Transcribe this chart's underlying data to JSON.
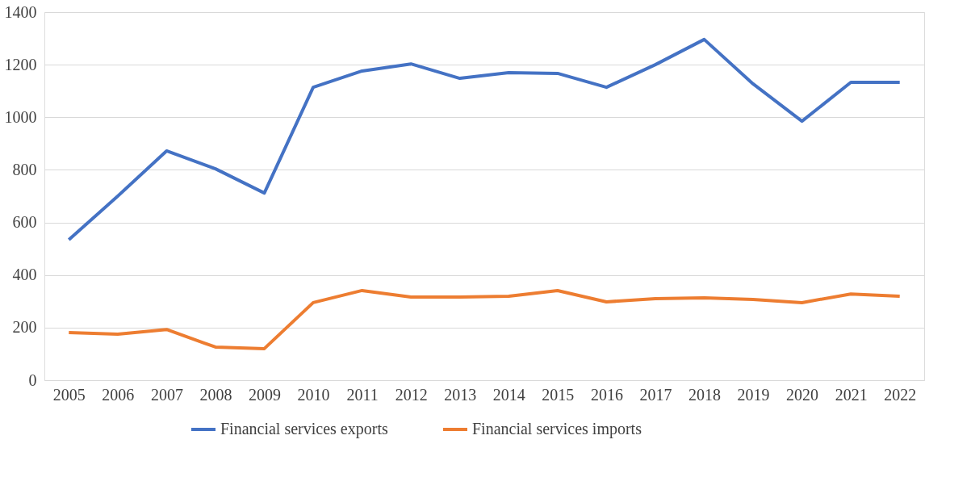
{
  "chart_data": {
    "type": "line",
    "categories": [
      "2005",
      "2006",
      "2007",
      "2008",
      "2009",
      "2010",
      "2011",
      "2012",
      "2013",
      "2014",
      "2015",
      "2016",
      "2017",
      "2018",
      "2019",
      "2020",
      "2021",
      "2022"
    ],
    "series": [
      {
        "name": "Financial services exports",
        "color": "#4472c4",
        "values": [
          534,
          700,
          872,
          804,
          712,
          1114,
          1176,
          1203,
          1148,
          1170,
          1167,
          1114,
          1200,
          1296,
          1127,
          985,
          1133,
          1133
        ]
      },
      {
        "name": "Financial services imports",
        "color": "#ed7d31",
        "values": [
          181,
          175,
          193,
          126,
          120,
          295,
          341,
          316,
          316,
          319,
          341,
          298,
          310,
          313,
          307,
          295,
          328,
          319
        ]
      }
    ],
    "ylim": [
      0,
      1400
    ],
    "yticks": [
      0,
      200,
      400,
      600,
      800,
      1000,
      1200,
      1400
    ],
    "grid": "y",
    "legend": "bottom",
    "marker": "none",
    "line_style": "solid"
  }
}
